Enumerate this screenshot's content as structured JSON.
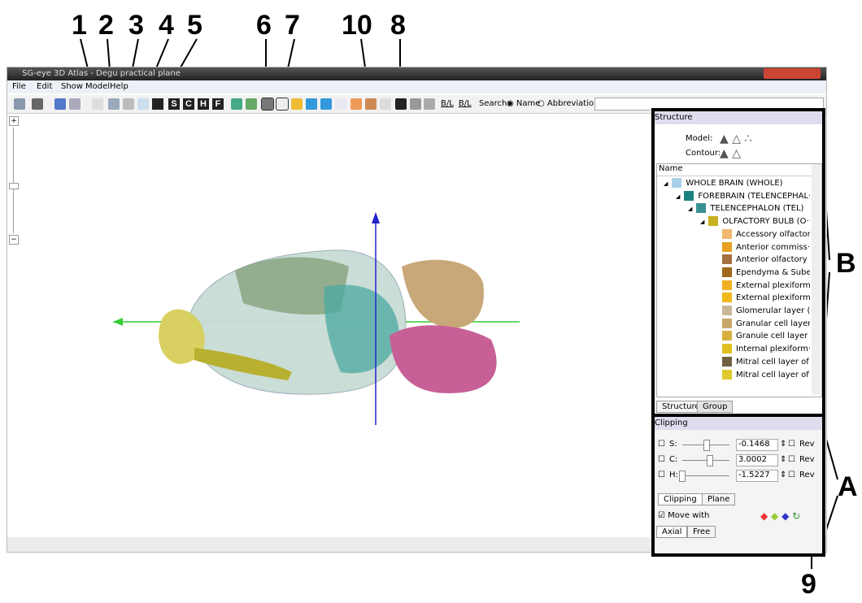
{
  "annotations": {
    "toolbar": [
      "1",
      "2",
      "3",
      "4",
      "5",
      "6",
      "7",
      "10",
      "8"
    ],
    "panel_b": "B",
    "panel_a": "A",
    "bottom": "9"
  },
  "window": {
    "title": "SG-eye 3D Atlas - Degu practical plane",
    "menu": [
      "File",
      "Edit",
      "Show",
      "Model",
      "Help"
    ],
    "toolbar_letters": [
      "S",
      "C",
      "H",
      "F"
    ],
    "toolbar_bl": [
      "B/L",
      "B/L"
    ],
    "search": {
      "label": "Search:",
      "options": [
        "Name",
        "Abbreviation"
      ]
    }
  },
  "structure_panel": {
    "title": "Structure",
    "model_label": "Model:",
    "contour_label": "Contour:",
    "column": "Name",
    "tree": {
      "label": "WHOLE BRAIN (WHOLE)",
      "color": "#a8d0e8",
      "children": [
        {
          "label": "FOREBRAIN (TELENCEPHAL···",
          "color": "#1a8080",
          "children": [
            {
              "label": "TELENCEPHALON (TEL)",
              "color": "#3a9090",
              "children": [
                {
                  "label": "OLFACTORY BULB (O···",
                  "color": "#c8b020",
                  "children": [
                    {
                      "label": "Accessory olfactor···",
                      "color": "#f0b870"
                    },
                    {
                      "label": "Anterior commiss···",
                      "color": "#e8a020"
                    },
                    {
                      "label": "Anterior olfactory ···",
                      "color": "#a87040"
                    },
                    {
                      "label": "Ependyma & Sube···",
                      "color": "#a06818"
                    },
                    {
                      "label": "External plexiform···",
                      "color": "#f0b020"
                    },
                    {
                      "label": "External plexiform···",
                      "color": "#f0b818"
                    },
                    {
                      "label": "Glomerular layer (···",
                      "color": "#c8b898"
                    },
                    {
                      "label": "Granular cell layer···",
                      "color": "#c8a868"
                    },
                    {
                      "label": "Granule cell layer ···",
                      "color": "#d8b040"
                    },
                    {
                      "label": "Internal plexiform···",
                      "color": "#e0c020"
                    },
                    {
                      "label": "Mitral cell layer of ···",
                      "color": "#706040"
                    },
                    {
                      "label": "Mitral cell layer of ···",
                      "color": "#e0c830"
                    }
                  ]
                }
              ]
            }
          ]
        }
      ]
    },
    "tabs": [
      "Structure",
      "Group"
    ]
  },
  "clipping_panel": {
    "title": "Clipping",
    "rows": [
      {
        "label": "S:",
        "value": "-0.1468",
        "rev": "Rev"
      },
      {
        "label": "C:",
        "value": "3.0002",
        "rev": "Rev"
      },
      {
        "label": "H:",
        "value": "-1.5227",
        "rev": "Rev"
      }
    ],
    "tabs": [
      "Clipping",
      "Plane"
    ],
    "move_with": "Move with",
    "bottom_tabs": [
      "Axial",
      "Free"
    ]
  }
}
